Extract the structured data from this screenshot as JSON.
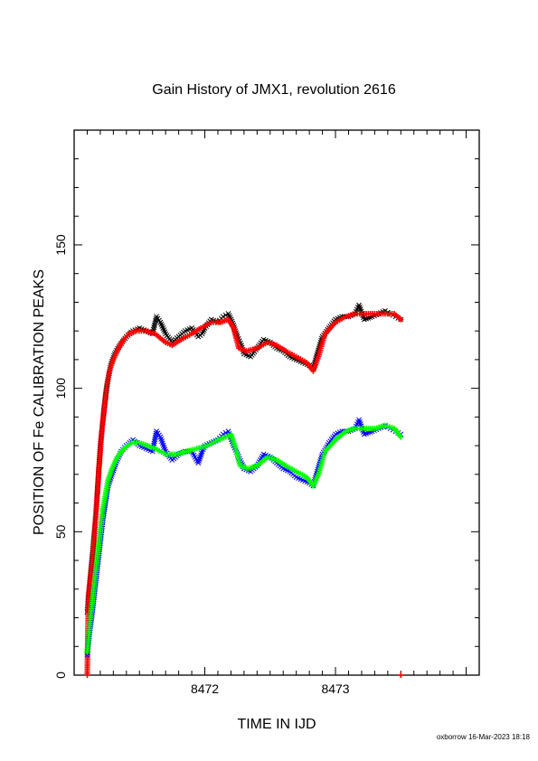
{
  "chart_data": {
    "type": "scatter",
    "title": "Gain History of JMX1, revolution 2616",
    "xlabel": "TIME IN IJD",
    "ylabel": "POSITION OF Fe CALIBRATION PEAKS",
    "xlim": [
      8471.0,
      8474.1
    ],
    "ylim": [
      0,
      190
    ],
    "x_ticks": [
      8472,
      8473
    ],
    "x_tick_labels": [
      "8472",
      "8473"
    ],
    "y_ticks": [
      0,
      50,
      100,
      150
    ],
    "y_tick_labels": [
      "0",
      "50",
      "100",
      "150"
    ],
    "grid": false,
    "legend": "none",
    "series": [
      {
        "marker": "x",
        "color": "#000000",
        "points": [
          [
            8471.1,
            22
          ],
          [
            8471.12,
            33
          ],
          [
            8471.14,
            42
          ],
          [
            8471.16,
            53
          ],
          [
            8471.18,
            66
          ],
          [
            8471.2,
            80
          ],
          [
            8471.22,
            89
          ],
          [
            8471.24,
            97
          ],
          [
            8471.26,
            103
          ],
          [
            8471.28,
            108
          ],
          [
            8471.31,
            112
          ],
          [
            8471.35,
            115
          ],
          [
            8471.4,
            118
          ],
          [
            8471.45,
            120
          ],
          [
            8471.5,
            121
          ],
          [
            8471.55,
            120
          ],
          [
            8471.6,
            119
          ],
          [
            8471.63,
            125
          ],
          [
            8471.66,
            123
          ],
          [
            8471.7,
            119
          ],
          [
            8471.75,
            116
          ],
          [
            8471.8,
            118
          ],
          [
            8471.85,
            120
          ],
          [
            8471.9,
            121
          ],
          [
            8471.95,
            118
          ],
          [
            8471.98,
            119
          ],
          [
            8472.0,
            121
          ],
          [
            8472.05,
            124
          ],
          [
            8472.1,
            123
          ],
          [
            8472.14,
            125
          ],
          [
            8472.18,
            126
          ],
          [
            8472.22,
            122
          ],
          [
            8472.25,
            118
          ],
          [
            8472.28,
            115
          ],
          [
            8472.3,
            112
          ],
          [
            8472.35,
            111
          ],
          [
            8472.4,
            114
          ],
          [
            8472.45,
            117
          ],
          [
            8472.5,
            116
          ],
          [
            8472.55,
            114
          ],
          [
            8472.6,
            113
          ],
          [
            8472.65,
            111
          ],
          [
            8472.7,
            110
          ],
          [
            8472.75,
            109
          ],
          [
            8472.8,
            108
          ],
          [
            8472.83,
            107
          ],
          [
            8472.86,
            112
          ],
          [
            8472.9,
            118
          ],
          [
            8472.95,
            121
          ],
          [
            8473.0,
            124
          ],
          [
            8473.05,
            125
          ],
          [
            8473.1,
            125
          ],
          [
            8473.15,
            126
          ],
          [
            8473.18,
            129
          ],
          [
            8473.22,
            124
          ],
          [
            8473.28,
            125
          ],
          [
            8473.33,
            126
          ],
          [
            8473.38,
            127
          ],
          [
            8473.42,
            126
          ],
          [
            8473.46,
            125
          ],
          [
            8473.5,
            124
          ]
        ]
      },
      {
        "marker": "plus",
        "color": "#ff0000",
        "points": [
          [
            8471.1,
            0
          ],
          [
            8471.11,
            28
          ],
          [
            8471.13,
            36
          ],
          [
            8471.15,
            46
          ],
          [
            8471.17,
            58
          ],
          [
            8471.19,
            72
          ],
          [
            8471.21,
            84
          ],
          [
            8471.23,
            93
          ],
          [
            8471.25,
            101
          ],
          [
            8471.27,
            106
          ],
          [
            8471.3,
            110
          ],
          [
            8471.34,
            114
          ],
          [
            8471.38,
            117
          ],
          [
            8471.42,
            119
          ],
          [
            8471.48,
            120
          ],
          [
            8471.55,
            120
          ],
          [
            8471.62,
            119
          ],
          [
            8471.7,
            116
          ],
          [
            8471.75,
            115
          ],
          [
            8471.82,
            117
          ],
          [
            8471.9,
            119
          ],
          [
            8471.97,
            121
          ],
          [
            8472.05,
            123
          ],
          [
            8472.12,
            123
          ],
          [
            8472.18,
            124
          ],
          [
            8472.22,
            121
          ],
          [
            8472.26,
            114
          ],
          [
            8472.32,
            113
          ],
          [
            8472.4,
            114
          ],
          [
            8472.48,
            116
          ],
          [
            8472.55,
            115
          ],
          [
            8472.62,
            113
          ],
          [
            8472.7,
            111
          ],
          [
            8472.78,
            109
          ],
          [
            8472.83,
            106
          ],
          [
            8472.87,
            111
          ],
          [
            8472.92,
            119
          ],
          [
            8473.0,
            123
          ],
          [
            8473.08,
            125
          ],
          [
            8473.15,
            126
          ],
          [
            8473.22,
            126
          ],
          [
            8473.3,
            126
          ],
          [
            8473.38,
            126
          ],
          [
            8473.45,
            126
          ],
          [
            8473.5,
            124
          ],
          [
            8473.5,
            0
          ]
        ]
      },
      {
        "marker": "x",
        "color": "#0000ff",
        "points": [
          [
            8471.1,
            7
          ],
          [
            8471.12,
            15
          ],
          [
            8471.14,
            22
          ],
          [
            8471.16,
            30
          ],
          [
            8471.18,
            38
          ],
          [
            8471.2,
            46
          ],
          [
            8471.22,
            54
          ],
          [
            8471.24,
            60
          ],
          [
            8471.26,
            66
          ],
          [
            8471.29,
            70
          ],
          [
            8471.32,
            74
          ],
          [
            8471.36,
            78
          ],
          [
            8471.4,
            80
          ],
          [
            8471.45,
            82
          ],
          [
            8471.5,
            80
          ],
          [
            8471.55,
            79
          ],
          [
            8471.6,
            78
          ],
          [
            8471.63,
            85
          ],
          [
            8471.66,
            83
          ],
          [
            8471.7,
            78
          ],
          [
            8471.75,
            75
          ],
          [
            8471.8,
            77
          ],
          [
            8471.85,
            78
          ],
          [
            8471.9,
            78
          ],
          [
            8471.95,
            74
          ],
          [
            8471.98,
            78
          ],
          [
            8472.0,
            80
          ],
          [
            8472.05,
            81
          ],
          [
            8472.1,
            82
          ],
          [
            8472.14,
            84
          ],
          [
            8472.18,
            85
          ],
          [
            8472.22,
            80
          ],
          [
            8472.25,
            77
          ],
          [
            8472.28,
            74
          ],
          [
            8472.3,
            72
          ],
          [
            8472.35,
            71
          ],
          [
            8472.4,
            73
          ],
          [
            8472.45,
            77
          ],
          [
            8472.5,
            76
          ],
          [
            8472.55,
            74
          ],
          [
            8472.6,
            72
          ],
          [
            8472.65,
            71
          ],
          [
            8472.7,
            69
          ],
          [
            8472.75,
            68
          ],
          [
            8472.8,
            67
          ],
          [
            8472.83,
            66
          ],
          [
            8472.86,
            71
          ],
          [
            8472.9,
            77
          ],
          [
            8472.95,
            81
          ],
          [
            8473.0,
            84
          ],
          [
            8473.05,
            85
          ],
          [
            8473.1,
            85
          ],
          [
            8473.15,
            86
          ],
          [
            8473.18,
            89
          ],
          [
            8473.22,
            84
          ],
          [
            8473.28,
            85
          ],
          [
            8473.33,
            86
          ],
          [
            8473.38,
            87
          ],
          [
            8473.42,
            86
          ],
          [
            8473.46,
            85
          ],
          [
            8473.5,
            84
          ]
        ]
      },
      {
        "marker": "plus",
        "color": "#00ff00",
        "points": [
          [
            8471.1,
            8
          ],
          [
            8471.12,
            18
          ],
          [
            8471.14,
            26
          ],
          [
            8471.16,
            34
          ],
          [
            8471.18,
            42
          ],
          [
            8471.2,
            50
          ],
          [
            8471.22,
            58
          ],
          [
            8471.24,
            63
          ],
          [
            8471.26,
            68
          ],
          [
            8471.29,
            72
          ],
          [
            8471.33,
            76
          ],
          [
            8471.38,
            79
          ],
          [
            8471.44,
            81
          ],
          [
            8471.5,
            81
          ],
          [
            8471.56,
            80
          ],
          [
            8471.62,
            79
          ],
          [
            8471.7,
            77
          ],
          [
            8471.78,
            77
          ],
          [
            8471.86,
            78
          ],
          [
            8471.94,
            79
          ],
          [
            8472.02,
            80
          ],
          [
            8472.1,
            82
          ],
          [
            8472.16,
            83
          ],
          [
            8472.2,
            84
          ],
          [
            8472.23,
            80
          ],
          [
            8472.27,
            73
          ],
          [
            8472.33,
            72
          ],
          [
            8472.4,
            73
          ],
          [
            8472.48,
            76
          ],
          [
            8472.55,
            75
          ],
          [
            8472.62,
            73
          ],
          [
            8472.7,
            71
          ],
          [
            8472.78,
            69
          ],
          [
            8472.83,
            66
          ],
          [
            8472.87,
            70
          ],
          [
            8472.92,
            78
          ],
          [
            8473.0,
            82
          ],
          [
            8473.08,
            85
          ],
          [
            8473.15,
            86
          ],
          [
            8473.22,
            86
          ],
          [
            8473.3,
            86
          ],
          [
            8473.38,
            87
          ],
          [
            8473.45,
            86
          ],
          [
            8473.5,
            83
          ]
        ]
      }
    ]
  },
  "footer": "oxborrow 16-Mar-2023 18:18"
}
